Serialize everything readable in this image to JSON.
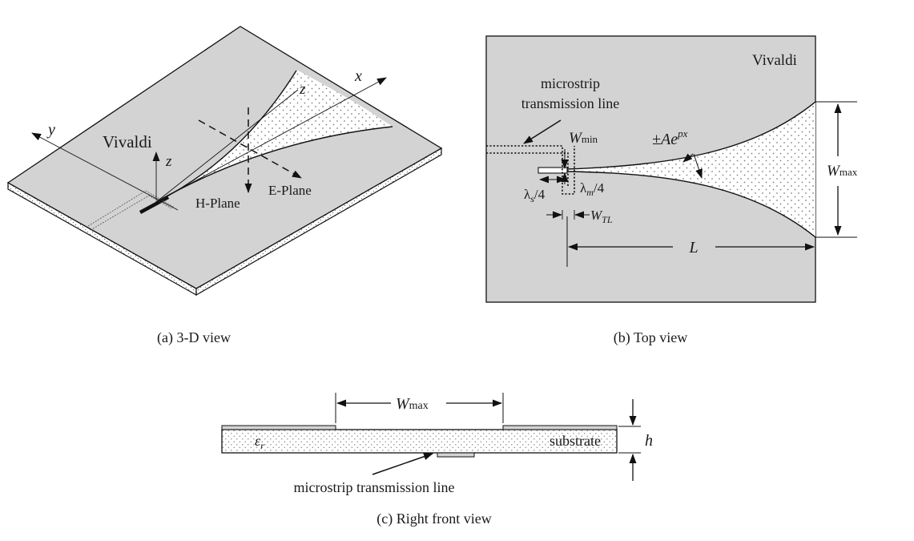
{
  "panel_a": {
    "caption": "(a) 3-D view",
    "label_vivaldi": "Vivaldi",
    "axis_x": "x",
    "axis_y": "y",
    "axis_z_top": "z",
    "axis_z_low": "z",
    "plane_h": "H-Plane",
    "plane_e": "E-Plane"
  },
  "panel_b": {
    "caption": "(b) Top view",
    "label_vivaldi": "Vivaldi",
    "tl_line1": "microstrip",
    "tl_line2": "transmission line",
    "w": "W",
    "sub_min": "min",
    "sub_max": "max",
    "sub_tl": "TL",
    "pm_a": "±Ae",
    "px": "px",
    "lambda": "λ",
    "sub_s": "s",
    "sub_m": "m",
    "quarter": "/4",
    "len_l": "L"
  },
  "panel_c": {
    "caption": "(c) Right front view",
    "w": "W",
    "sub_max": "max",
    "eps": "ε",
    "sub_r": "r",
    "substrate": "substrate",
    "height": "h",
    "tl_label": "microstrip transmission line"
  },
  "colors": {
    "metal": "#d3d3d3",
    "line": "#111111",
    "dots": "#7a7a7a",
    "background": "#ffffff"
  }
}
